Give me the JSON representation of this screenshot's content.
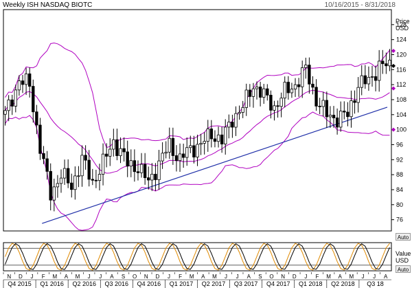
{
  "header": {
    "title": "Weekly ISH NASDAQ BIOTC",
    "date_range": "10/16/2015 - 8/31/2018"
  },
  "price_axis_title": [
    "Price",
    "USD"
  ],
  "value_axis_title": [
    "Value",
    "USD"
  ],
  "auto_label": "Auto",
  "colors": {
    "candle": "#000000",
    "band": "#b000c0",
    "trend": "#1f2fa8",
    "fast": "#e08a00",
    "slow": "#000000"
  },
  "chart_data": [
    {
      "type": "candlestick",
      "title": "Weekly ISH NASDAQ BIOTC",
      "ylim": [
        73,
        132
      ],
      "yticks": [
        76,
        80,
        84,
        88,
        92,
        96,
        100,
        104,
        108,
        112,
        116,
        120,
        124,
        128
      ],
      "x_sections": [
        "Q4 2015",
        "Q1 2016",
        "Q2 2016",
        "Q3 2016",
        "Q4 2016",
        "Q1 2017",
        "Q2 2017",
        "Q3 2017",
        "Q4 2017",
        "Q1 2018",
        "Q2 2018",
        "Q3 18"
      ],
      "x_months": [
        "N",
        "D",
        "J",
        "F",
        "M",
        "A",
        "M",
        "J",
        "J",
        "A",
        "S",
        "O",
        "N",
        "D",
        "J",
        "F",
        "M",
        "A",
        "M",
        "J",
        "J",
        "A",
        "S",
        "O",
        "N",
        "D",
        "J",
        "F",
        "M",
        "A",
        "M",
        "J",
        "J",
        "A"
      ],
      "price_anchors": [
        [
          0,
          104
        ],
        [
          4,
          113
        ],
        [
          7,
          112
        ],
        [
          10,
          95
        ],
        [
          13,
          83
        ],
        [
          16,
          88
        ],
        [
          19,
          85
        ],
        [
          22,
          92
        ],
        [
          25,
          86
        ],
        [
          28,
          91
        ],
        [
          31,
          97
        ],
        [
          35,
          91
        ],
        [
          38,
          90
        ],
        [
          41,
          86
        ],
        [
          44,
          91
        ],
        [
          47,
          96
        ],
        [
          50,
          92
        ],
        [
          53,
          95
        ],
        [
          56,
          96
        ],
        [
          59,
          99
        ],
        [
          62,
          97
        ],
        [
          65,
          103
        ],
        [
          68,
          106
        ],
        [
          71,
          112
        ],
        [
          74,
          109
        ],
        [
          77,
          106
        ],
        [
          80,
          110
        ],
        [
          83,
          112
        ],
        [
          86,
          116
        ],
        [
          89,
          108
        ],
        [
          92,
          104
        ],
        [
          95,
          103
        ],
        [
          98,
          104
        ],
        [
          101,
          112
        ],
        [
          104,
          113
        ],
        [
          107,
          117
        ],
        [
          110,
          117
        ]
      ],
      "candles_count": 111,
      "bollinger_period": 20,
      "bollinger_k": 2,
      "trendline": {
        "start": [
          14,
          75
        ],
        "end": [
          146,
          106
        ]
      },
      "last_markers": [
        {
          "name": "upper-band",
          "value": 121,
          "color": "#b000c0",
          "shape": "diamond"
        },
        {
          "name": "last-price",
          "value": 117,
          "color": "#000000",
          "shape": "diamond"
        },
        {
          "name": "middle-band",
          "value": 111,
          "color": "#b000c0",
          "shape": "diamond"
        },
        {
          "name": "lower-band",
          "value": 100,
          "color": "#b000c0",
          "shape": "diamond"
        }
      ]
    },
    {
      "type": "line",
      "title": "",
      "ylim": [
        0,
        100
      ],
      "series": [
        {
          "name": "",
          "color": "#e08a00",
          "wave_period": 9,
          "phase": 0
        },
        {
          "name": "",
          "color": "#000000",
          "wave_period": 9,
          "phase": 1
        }
      ],
      "reference_lines": [
        20,
        80
      ]
    }
  ]
}
